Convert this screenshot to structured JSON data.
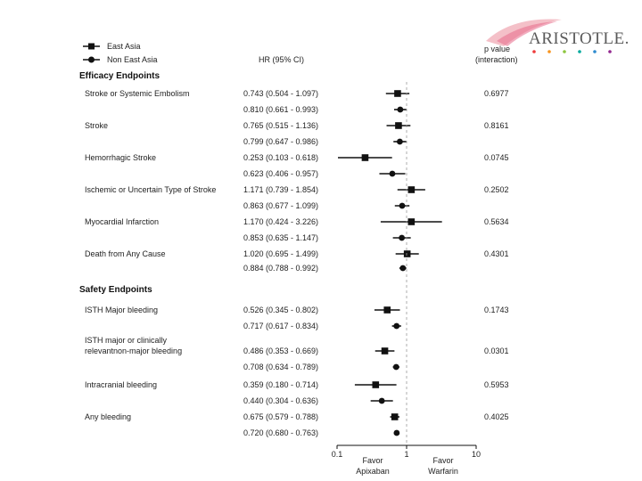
{
  "logo": {
    "text": "ARISTOTLE.",
    "colors": [
      "#ee3b3b",
      "#f7941d",
      "#8dc63f",
      "#00a99d",
      "#2e8bcf",
      "#92278f"
    ]
  },
  "legend": [
    {
      "label": "East Asia",
      "marker": "square"
    },
    {
      "label": "Non East Asia",
      "marker": "circle"
    }
  ],
  "header": {
    "hr_col": "HR (95% CI)",
    "p_col_line1": "p value",
    "p_col_line2": "(interaction)"
  },
  "chart_data": {
    "type": "forest",
    "scale": "log",
    "xlim": [
      0.1,
      10
    ],
    "xticks": [
      "0.1",
      "1",
      "10"
    ],
    "xlabel_left": [
      "Favor",
      "Apixaban"
    ],
    "xlabel_right": [
      "Favor",
      "Warfarin"
    ],
    "sections": [
      {
        "title": "Efficacy Endpoints",
        "endpoints": [
          {
            "name": [
              "Stroke or Systemic Embolism"
            ],
            "p": "0.6977",
            "rows": [
              {
                "group": "East Asia",
                "hr": 0.743,
                "lo": 0.504,
                "hi": 1.097,
                "ci": "0.743 (0.504 - 1.097)"
              },
              {
                "group": "Non East Asia",
                "hr": 0.81,
                "lo": 0.661,
                "hi": 0.993,
                "ci": "0.810 (0.661 - 0.993)"
              }
            ]
          },
          {
            "name": [
              "Stroke"
            ],
            "p": "0.8161",
            "rows": [
              {
                "group": "East Asia",
                "hr": 0.765,
                "lo": 0.515,
                "hi": 1.136,
                "ci": "0.765 (0.515 - 1.136)"
              },
              {
                "group": "Non East Asia",
                "hr": 0.799,
                "lo": 0.647,
                "hi": 0.986,
                "ci": "0.799 (0.647 - 0.986)"
              }
            ]
          },
          {
            "name": [
              "Hemorrhagic Stroke"
            ],
            "p": "0.0745",
            "rows": [
              {
                "group": "East Asia",
                "hr": 0.253,
                "lo": 0.103,
                "hi": 0.618,
                "ci": "0.253 (0.103 - 0.618)"
              },
              {
                "group": "Non East Asia",
                "hr": 0.623,
                "lo": 0.406,
                "hi": 0.957,
                "ci": "0.623 (0.406 - 0.957)"
              }
            ]
          },
          {
            "name": [
              "Ischemic or Uncertain Type of Stroke"
            ],
            "p": "0.2502",
            "rows": [
              {
                "group": "East Asia",
                "hr": 1.171,
                "lo": 0.739,
                "hi": 1.854,
                "ci": "1.171 (0.739 - 1.854)"
              },
              {
                "group": "Non East Asia",
                "hr": 0.863,
                "lo": 0.677,
                "hi": 1.099,
                "ci": "0.863 (0.677 - 1.099)"
              }
            ]
          },
          {
            "name": [
              "Myocardial Infarction"
            ],
            "p": "0.5634",
            "rows": [
              {
                "group": "East Asia",
                "hr": 1.17,
                "lo": 0.424,
                "hi": 3.226,
                "ci": "1.170 (0.424 - 3.226)"
              },
              {
                "group": "Non East Asia",
                "hr": 0.853,
                "lo": 0.635,
                "hi": 1.147,
                "ci": "0.853 (0.635 - 1.147)"
              }
            ]
          },
          {
            "name": [
              "Death from Any Cause"
            ],
            "p": "0.4301",
            "rows": [
              {
                "group": "East Asia",
                "hr": 1.02,
                "lo": 0.695,
                "hi": 1.499,
                "ci": "1.020 (0.695 - 1.499)"
              },
              {
                "group": "Non East Asia",
                "hr": 0.884,
                "lo": 0.788,
                "hi": 0.992,
                "ci": "0.884 (0.788 - 0.992)"
              }
            ]
          }
        ]
      },
      {
        "title": "Safety Endpoints",
        "endpoints": [
          {
            "name": [
              "ISTH Major bleeding"
            ],
            "p": "0.1743",
            "rows": [
              {
                "group": "East Asia",
                "hr": 0.526,
                "lo": 0.345,
                "hi": 0.802,
                "ci": "0.526 (0.345 - 0.802)"
              },
              {
                "group": "Non East Asia",
                "hr": 0.717,
                "lo": 0.617,
                "hi": 0.834,
                "ci": "0.717 (0.617 - 0.834)"
              }
            ]
          },
          {
            "name": [
              "ISTH major or clinically",
              "relevantnon-major bleeding"
            ],
            "p": "0.0301",
            "rows": [
              {
                "group": "East Asia",
                "hr": 0.486,
                "lo": 0.353,
                "hi": 0.669,
                "ci": "0.486 (0.353 - 0.669)"
              },
              {
                "group": "Non East Asia",
                "hr": 0.708,
                "lo": 0.634,
                "hi": 0.789,
                "ci": "0.708 (0.634 - 0.789)"
              }
            ]
          },
          {
            "name": [
              "Intracranial bleeding"
            ],
            "p": "0.5953",
            "rows": [
              {
                "group": "East Asia",
                "hr": 0.359,
                "lo": 0.18,
                "hi": 0.714,
                "ci": "0.359 (0.180 - 0.714)"
              },
              {
                "group": "Non East Asia",
                "hr": 0.44,
                "lo": 0.304,
                "hi": 0.636,
                "ci": "0.440 (0.304 - 0.636)"
              }
            ]
          },
          {
            "name": [
              "Any bleeding"
            ],
            "p": "0.4025",
            "rows": [
              {
                "group": "East Asia",
                "hr": 0.675,
                "lo": 0.579,
                "hi": 0.788,
                "ci": "0.675 (0.579 - 0.788)"
              },
              {
                "group": "Non East Asia",
                "hr": 0.72,
                "lo": 0.68,
                "hi": 0.763,
                "ci": "0.720 (0.680 - 0.763)"
              }
            ]
          }
        ]
      }
    ]
  }
}
